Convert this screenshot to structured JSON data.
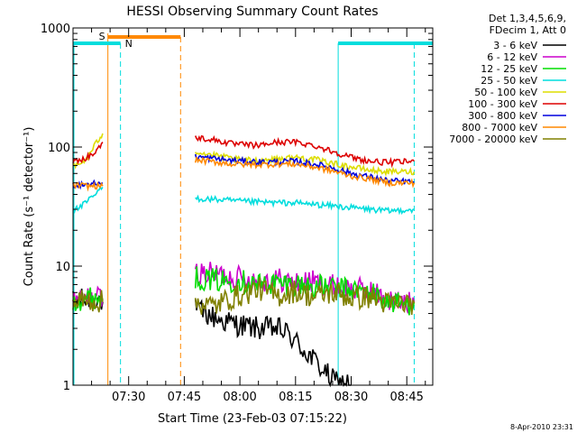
{
  "chart_data": {
    "type": "line",
    "title": "HESSI Observing Summary Count Rates",
    "xlabel": "Start Time (23-Feb-03 07:15:22)",
    "ylabel": "Count Rate (s⁻¹ detector⁻¹)",
    "yscale": "log",
    "ylim": [
      1,
      1000
    ],
    "xlim_minutes": [
      0,
      97
    ],
    "x_ticks": [
      {
        "minute": 15,
        "label": "07:30"
      },
      {
        "minute": 30,
        "label": "07:45"
      },
      {
        "minute": 45,
        "label": "08:00"
      },
      {
        "minute": 60,
        "label": "08:15"
      },
      {
        "minute": 75,
        "label": "08:30"
      },
      {
        "minute": 90,
        "label": "08:45"
      }
    ],
    "y_ticks": [
      {
        "value": 1,
        "label": "1"
      },
      {
        "value": 10,
        "label": "10"
      },
      {
        "value": 100,
        "label": "100"
      },
      {
        "value": 1000,
        "label": "1000"
      }
    ],
    "legend": {
      "placement": "right",
      "header": [
        "Det 1,3,4,5,6,9,",
        "FDecim 1, Att 0"
      ]
    },
    "series": [
      {
        "name": "3 - 6 keV",
        "color": "#000000",
        "segments": [
          [
            [
              0,
              5
            ],
            [
              6,
              5.5
            ],
            [
              8,
              5
            ]
          ],
          [
            [
              33,
              4.3
            ],
            [
              40,
              3.5
            ],
            [
              45,
              3.2
            ],
            [
              50,
              3.0
            ],
            [
              55,
              3.0
            ],
            [
              58,
              2.7
            ],
            [
              62,
              2.0
            ],
            [
              66,
              1.5
            ],
            [
              70,
              1.1
            ],
            [
              75,
              1.0
            ]
          ]
        ]
      },
      {
        "name": "6 - 12 keV",
        "color": "#cc00cc",
        "segments": [
          [
            [
              0,
              5
            ],
            [
              6,
              5.5
            ],
            [
              8,
              5.3
            ]
          ],
          [
            [
              33,
              8.8
            ],
            [
              40,
              8.5
            ],
            [
              45,
              8.0
            ],
            [
              50,
              7.5
            ],
            [
              55,
              7.8
            ],
            [
              60,
              7.2
            ],
            [
              65,
              7.4
            ],
            [
              70,
              6.8
            ],
            [
              75,
              6.5
            ],
            [
              80,
              6.2
            ],
            [
              85,
              5.2
            ],
            [
              90,
              4.8
            ],
            [
              92,
              5.0
            ]
          ]
        ]
      },
      {
        "name": "12 - 25 keV",
        "color": "#00dd00",
        "segments": [
          [
            [
              0,
              5.2
            ],
            [
              6,
              5.5
            ],
            [
              8,
              5.2
            ]
          ],
          [
            [
              33,
              8.0
            ],
            [
              40,
              7.5
            ],
            [
              45,
              7.6
            ],
            [
              50,
              7.0
            ],
            [
              55,
              7.2
            ],
            [
              60,
              7.0
            ],
            [
              65,
              6.8
            ],
            [
              70,
              6.5
            ],
            [
              75,
              6.3
            ],
            [
              80,
              6.0
            ],
            [
              85,
              5.0
            ],
            [
              90,
              4.8
            ],
            [
              92,
              5.0
            ]
          ]
        ]
      },
      {
        "name": "25 - 50 keV",
        "color": "#00dddd",
        "segments": [
          [
            [
              0,
              29
            ],
            [
              3,
              33
            ],
            [
              6,
              40
            ],
            [
              8,
              46
            ]
          ],
          [
            [
              33,
              37
            ],
            [
              40,
              36
            ],
            [
              45,
              35
            ],
            [
              55,
              34
            ],
            [
              60,
              34
            ],
            [
              65,
              33
            ],
            [
              70,
              32
            ],
            [
              75,
              31
            ],
            [
              80,
              30
            ],
            [
              85,
              29
            ],
            [
              92,
              30
            ]
          ]
        ]
      },
      {
        "name": "50 - 100 keV",
        "color": "#dddd00",
        "segments": [
          [
            [
              0,
              68
            ],
            [
              2,
              72
            ],
            [
              4,
              82
            ],
            [
              6,
              105
            ],
            [
              8,
              130
            ]
          ],
          [
            [
              33,
              92
            ],
            [
              38,
              85
            ],
            [
              45,
              78
            ],
            [
              50,
              77
            ],
            [
              55,
              80
            ],
            [
              60,
              82
            ],
            [
              65,
              79
            ],
            [
              70,
              73
            ],
            [
              75,
              68
            ],
            [
              80,
              64
            ],
            [
              85,
              62
            ],
            [
              92,
              62
            ]
          ]
        ]
      },
      {
        "name": "100 - 300 keV",
        "color": "#dd0000",
        "segments": [
          [
            [
              0,
              76
            ],
            [
              3,
              80
            ],
            [
              6,
              90
            ],
            [
              8,
              110
            ]
          ],
          [
            [
              33,
              120
            ],
            [
              38,
              115
            ],
            [
              43,
              106
            ],
            [
              50,
              103
            ],
            [
              55,
              110
            ],
            [
              60,
              110
            ],
            [
              65,
              103
            ],
            [
              70,
              92
            ],
            [
              75,
              82
            ],
            [
              80,
              76
            ],
            [
              85,
              74
            ],
            [
              92,
              76
            ]
          ]
        ]
      },
      {
        "name": "300 - 800 keV",
        "color": "#0000dd",
        "segments": [
          [
            [
              0,
              48
            ],
            [
              4,
              49
            ],
            [
              8,
              50
            ]
          ],
          [
            [
              33,
              83
            ],
            [
              38,
              80
            ],
            [
              43,
              77
            ],
            [
              50,
              75
            ],
            [
              55,
              75
            ],
            [
              60,
              76
            ],
            [
              65,
              72
            ],
            [
              70,
              67
            ],
            [
              75,
              60
            ],
            [
              80,
              56
            ],
            [
              85,
              52
            ],
            [
              92,
              51
            ]
          ]
        ]
      },
      {
        "name": "800 - 7000 keV",
        "color": "#ff8800",
        "segments": [
          [
            [
              0,
              48
            ],
            [
              4,
              47
            ],
            [
              8,
              47
            ]
          ],
          [
            [
              33,
              78
            ],
            [
              38,
              75
            ],
            [
              43,
              72
            ],
            [
              50,
              71
            ],
            [
              55,
              72
            ],
            [
              60,
              72
            ],
            [
              65,
              68
            ],
            [
              70,
              63
            ],
            [
              75,
              57
            ],
            [
              80,
              54
            ],
            [
              85,
              50
            ],
            [
              92,
              50
            ]
          ]
        ]
      },
      {
        "name": "7000 - 20000 keV",
        "color": "#808000",
        "segments": [
          [
            [
              0,
              5
            ],
            [
              4,
              5.2
            ],
            [
              8,
              5
            ]
          ],
          [
            [
              33,
              5
            ],
            [
              38,
              4.6
            ],
            [
              42,
              5.3
            ],
            [
              46,
              5.8
            ],
            [
              50,
              6.5
            ],
            [
              55,
              5.6
            ],
            [
              60,
              6.2
            ],
            [
              65,
              5.5
            ],
            [
              70,
              6.0
            ],
            [
              75,
              5.4
            ],
            [
              80,
              5.5
            ],
            [
              85,
              4.8
            ],
            [
              92,
              4.9
            ]
          ]
        ]
      }
    ],
    "annotations": [
      {
        "label": "S",
        "color": "#ff8800",
        "type": "attenuator-state",
        "x_minutes": 9.4,
        "x_end_minutes": 29,
        "dashed_x_minutes": 29
      },
      {
        "label": "N",
        "color": "#00dddd",
        "type": "night",
        "x_minutes": 12.8,
        "x_end_minutes": 71.5,
        "dashed_x_minutes": [
          12.8,
          92
        ]
      }
    ]
  },
  "timestamp": "8-Apr-2010 23:31"
}
